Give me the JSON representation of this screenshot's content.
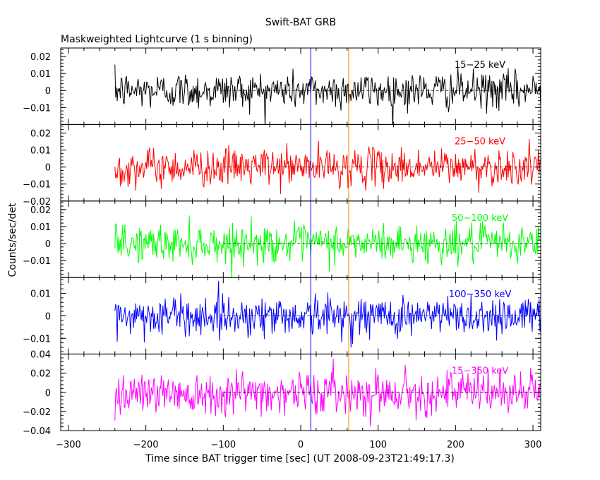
{
  "chart_data": {
    "type": "line",
    "title": "Swift-BAT GRB",
    "subtitle": "Maskweighted Lightcurve (1 s binning)",
    "xlabel": "Time since BAT trigger time [sec] (UT 2008-09-23T21:49:17.3)",
    "ylabel": "Counts/sec/det",
    "xlim": [
      -310,
      310
    ],
    "x_ticks": [
      -300,
      -200,
      -100,
      0,
      100,
      200,
      300
    ],
    "data_x_range": [
      -240,
      310
    ],
    "grid": false,
    "markers": [
      {
        "x": 13,
        "color": "#0000ff"
      },
      {
        "x": 62,
        "color": "#ff8000"
      }
    ],
    "series": [
      {
        "name": "15−25 keV",
        "color": "#000000",
        "ylim": [
          -0.02,
          0.025
        ],
        "noise": 0.0055,
        "ticks": [
          {
            "v": 0.02,
            "label": "0.02"
          },
          {
            "v": 0.01,
            "label": "0.01"
          },
          {
            "v": 0,
            "label": "0"
          },
          {
            "v": -0.01,
            "label": "−0.01"
          }
        ]
      },
      {
        "name": "25−50 keV",
        "color": "#ff0000",
        "ylim": [
          -0.02,
          0.025
        ],
        "noise": 0.0055,
        "ticks": [
          {
            "v": 0.02,
            "label": "0.02"
          },
          {
            "v": 0.01,
            "label": "0.01"
          },
          {
            "v": 0,
            "label": "0"
          },
          {
            "v": -0.01,
            "label": "−0.01"
          },
          {
            "v": -0.02,
            "label": "−0.02"
          }
        ]
      },
      {
        "name": "50−100 keV",
        "color": "#00ff00",
        "ylim": [
          -0.02,
          0.025
        ],
        "noise": 0.0055,
        "ticks": [
          {
            "v": 0.02,
            "label": "0.02"
          },
          {
            "v": 0.01,
            "label": "0.01"
          },
          {
            "v": 0,
            "label": "0"
          },
          {
            "v": -0.01,
            "label": "−0.01"
          }
        ]
      },
      {
        "name": "100−350 keV",
        "color": "#0000ff",
        "ylim": [
          -0.017,
          0.017
        ],
        "noise": 0.0045,
        "ticks": [
          {
            "v": 0.01,
            "label": "0.01"
          },
          {
            "v": 0,
            "label": "0"
          },
          {
            "v": -0.01,
            "label": "−0.01"
          }
        ]
      },
      {
        "name": "15−350 keV",
        "color": "#ff00ff",
        "ylim": [
          -0.04,
          0.04
        ],
        "noise": 0.011,
        "ticks": [
          {
            "v": 0.04,
            "label": "0.04"
          },
          {
            "v": 0.02,
            "label": "0.02"
          },
          {
            "v": 0,
            "label": "0"
          },
          {
            "v": -0.02,
            "label": "−0.02"
          },
          {
            "v": -0.04,
            "label": "−0.04"
          }
        ]
      }
    ]
  }
}
